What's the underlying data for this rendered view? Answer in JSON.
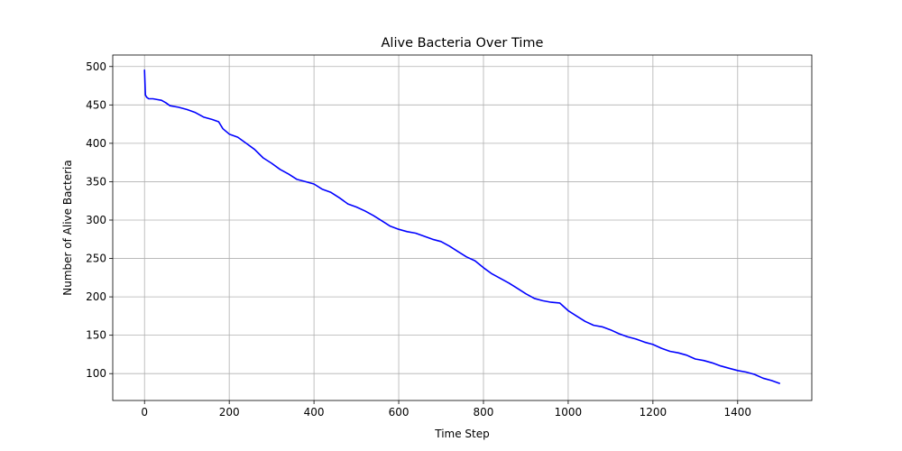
{
  "chart_data": {
    "type": "line",
    "title": "Alive Bacteria Over Time",
    "xlabel": "Time Step",
    "ylabel": "Number of Alive Bacteria",
    "xlim": [
      -75,
      1575
    ],
    "ylim": [
      65,
      515
    ],
    "xticks": [
      0,
      200,
      400,
      600,
      800,
      1000,
      1200,
      1400
    ],
    "yticks": [
      100,
      150,
      200,
      250,
      300,
      350,
      400,
      450,
      500
    ],
    "grid": true,
    "series": [
      {
        "color": "#0000ff",
        "x": [
          0,
          2,
          5,
          10,
          20,
          30,
          40,
          50,
          60,
          80,
          100,
          120,
          140,
          160,
          175,
          185,
          200,
          220,
          240,
          260,
          280,
          300,
          320,
          340,
          360,
          380,
          400,
          420,
          440,
          460,
          480,
          500,
          520,
          540,
          560,
          580,
          600,
          620,
          640,
          660,
          680,
          700,
          720,
          740,
          760,
          780,
          800,
          820,
          840,
          860,
          880,
          900,
          920,
          940,
          960,
          980,
          1000,
          1020,
          1040,
          1060,
          1080,
          1100,
          1120,
          1140,
          1160,
          1180,
          1200,
          1220,
          1240,
          1260,
          1280,
          1300,
          1320,
          1340,
          1360,
          1380,
          1400,
          1420,
          1440,
          1460,
          1480,
          1500
        ],
        "y": [
          496,
          463,
          460,
          458,
          458,
          457,
          456,
          453,
          449,
          447,
          444,
          440,
          434,
          431,
          428,
          419,
          412,
          408,
          400,
          392,
          381,
          374,
          366,
          360,
          353,
          350,
          347,
          340,
          336,
          329,
          321,
          317,
          312,
          306,
          299,
          292,
          288,
          285,
          283,
          279,
          275,
          272,
          266,
          259,
          252,
          247,
          238,
          230,
          224,
          218,
          211,
          204,
          198,
          195,
          193,
          192,
          182,
          175,
          168,
          163,
          161,
          157,
          152,
          148,
          145,
          141,
          138,
          133,
          129,
          127,
          124,
          119,
          117,
          114,
          110,
          107,
          104,
          102,
          99,
          94,
          91,
          87
        ]
      }
    ]
  }
}
